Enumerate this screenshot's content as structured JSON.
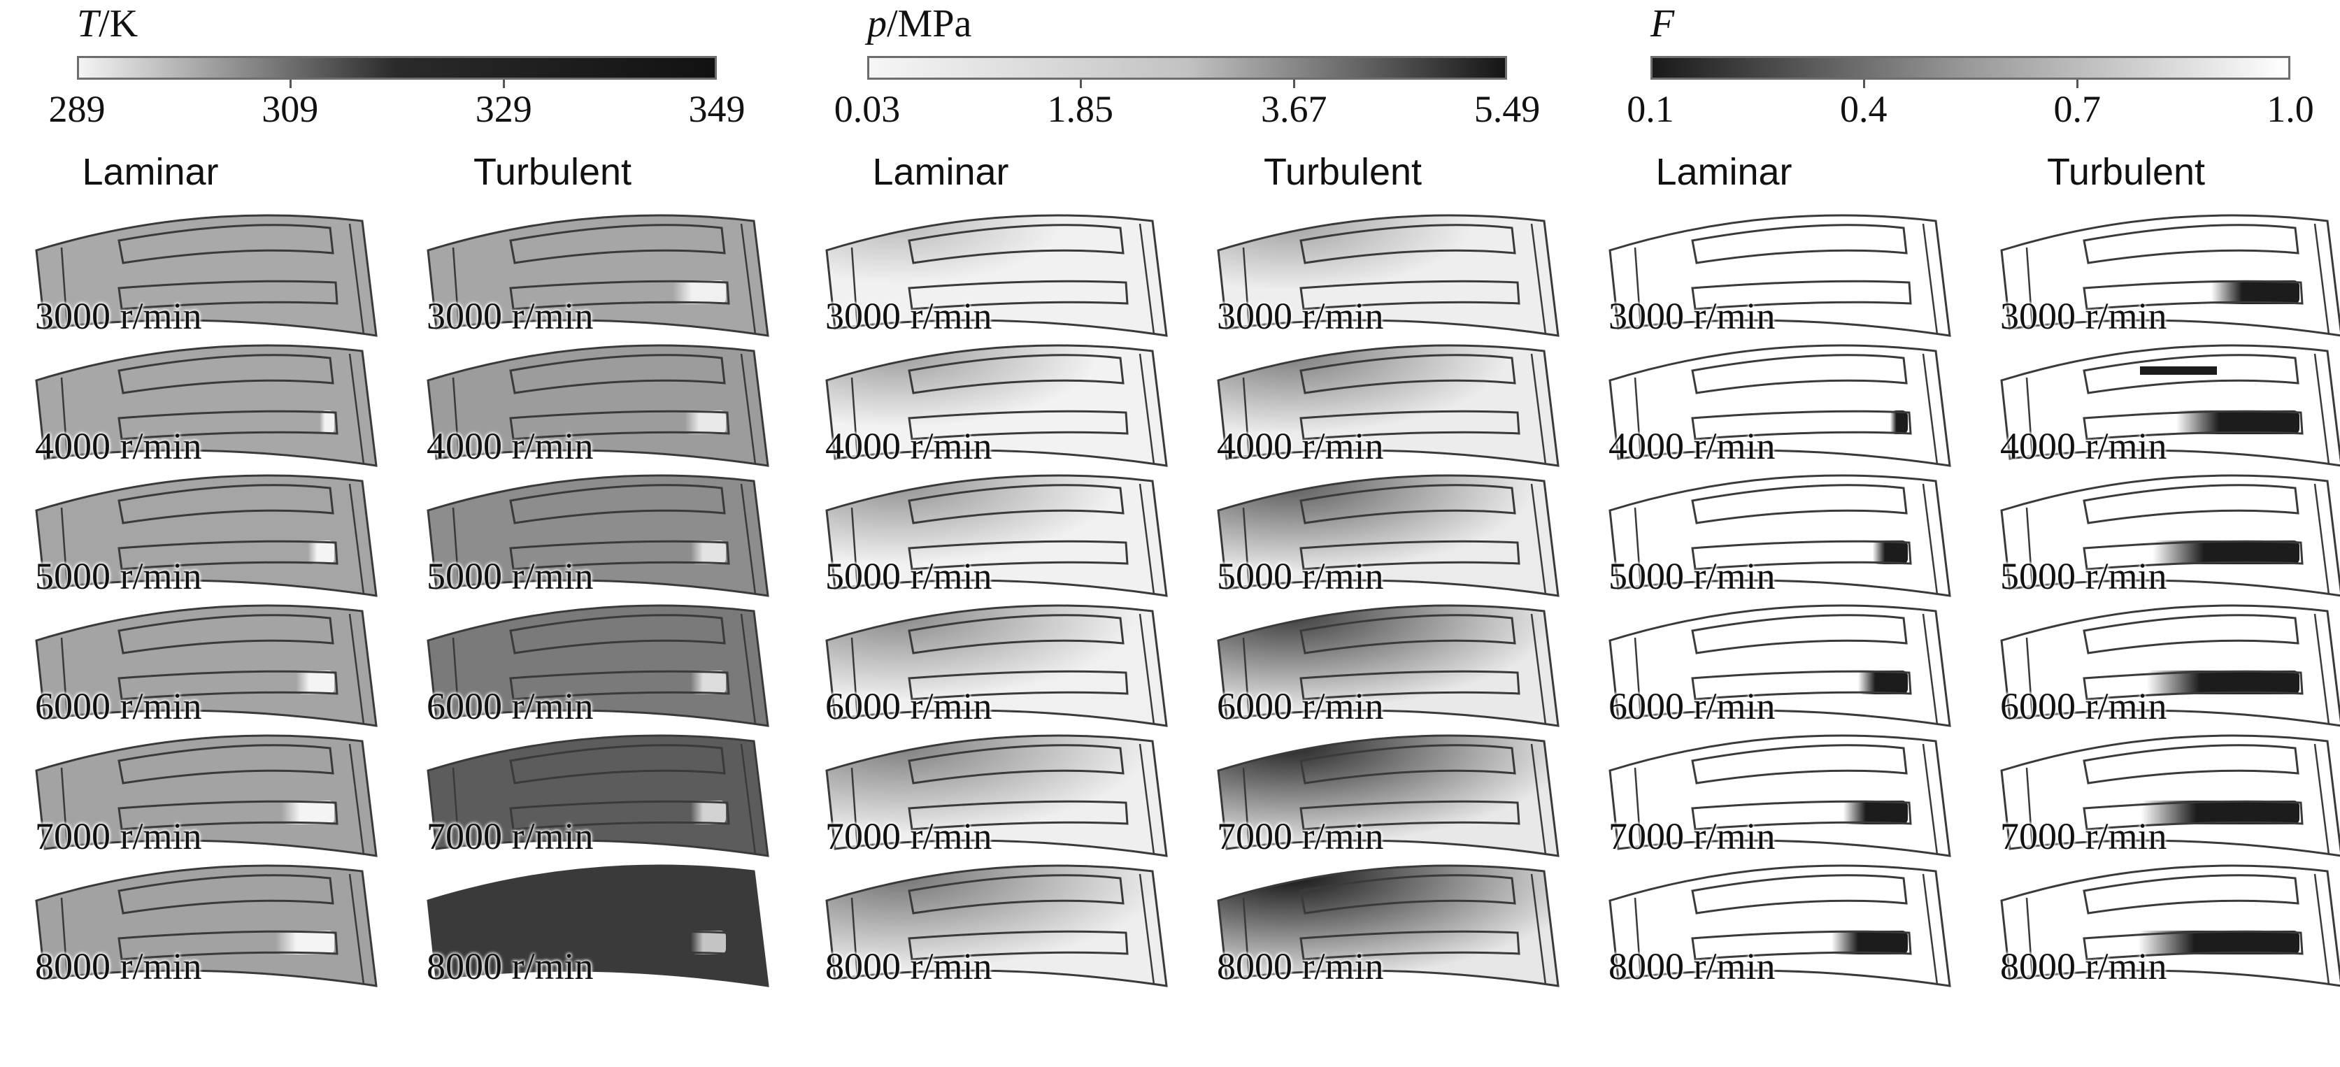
{
  "panels": [
    {
      "quantity_symbol": "T",
      "quantity_unit": "/K",
      "colorbar": {
        "gradient": [
          "#f4f4f4",
          "#2a2a2a",
          "#121212"
        ],
        "ticks": [
          "289",
          "309",
          "329",
          "349"
        ],
        "tick_fractions": [
          0,
          0.333,
          0.667,
          1
        ]
      },
      "columns": [
        "Laminar",
        "Turbulent"
      ],
      "rows": [
        {
          "speed": "3000 r/min",
          "cells": [
            {
              "body": "#a9a9a9",
              "blob": "#b5b5b5",
              "blob_w": 0
            },
            {
              "body": "#a6a6a6",
              "blob": "#f0f0f0",
              "blob_w": 0.18
            }
          ]
        },
        {
          "speed": "4000 r/min",
          "cells": [
            {
              "body": "#a7a7a7",
              "blob": "#f2f2f2",
              "blob_w": 0.05
            },
            {
              "body": "#9c9c9c",
              "blob": "#e9e9e9",
              "blob_w": 0.14
            }
          ]
        },
        {
          "speed": "5000 r/min",
          "cells": [
            {
              "body": "#a5a5a5",
              "blob": "#f4f4f4",
              "blob_w": 0.09
            },
            {
              "body": "#8d8d8d",
              "blob": "#e3e3e3",
              "blob_w": 0.12
            }
          ]
        },
        {
          "speed": "6000 r/min",
          "cells": [
            {
              "body": "#a4a4a4",
              "blob": "#f4f4f4",
              "blob_w": 0.13
            },
            {
              "body": "#7a7a7a",
              "blob": "#dcdcdc",
              "blob_w": 0.12
            }
          ]
        },
        {
          "speed": "7000 r/min",
          "cells": [
            {
              "body": "#a3a3a3",
              "blob": "#f4f4f4",
              "blob_w": 0.18
            },
            {
              "body": "#5c5c5c",
              "blob": "#d2d2d2",
              "blob_w": 0.12
            }
          ]
        },
        {
          "speed": "8000 r/min",
          "cells": [
            {
              "body": "#a2a2a2",
              "blob": "#f4f4f4",
              "blob_w": 0.2
            },
            {
              "body": "#3a3a3a",
              "blob": "#c4c4c4",
              "blob_w": 0.12
            }
          ]
        }
      ]
    },
    {
      "quantity_symbol": "p",
      "quantity_unit": "/MPa",
      "colorbar": {
        "gradient": [
          "#f6f6f6",
          "#c2c2c2",
          "#151515"
        ],
        "ticks": [
          "0.03",
          "1.85",
          "3.67",
          "5.49"
        ],
        "tick_fractions": [
          0,
          0.333,
          0.667,
          1
        ]
      },
      "columns": [
        "Laminar",
        "Turbulent"
      ],
      "rows": [
        {
          "speed": "3000 r/min",
          "cells": [
            {
              "body": "#f1f1f1",
              "corner": "#bdbdbd",
              "corner_strength": 0.2
            },
            {
              "body": "#eeeeee",
              "corner": "#a5a5a5",
              "corner_strength": 0.25
            }
          ]
        },
        {
          "speed": "4000 r/min",
          "cells": [
            {
              "body": "#f2f2f2",
              "corner": "#a0a0a0",
              "corner_strength": 0.3
            },
            {
              "body": "#ececec",
              "corner": "#808080",
              "corner_strength": 0.35
            }
          ]
        },
        {
          "speed": "5000 r/min",
          "cells": [
            {
              "body": "#f1f1f1",
              "corner": "#959595",
              "corner_strength": 0.35
            },
            {
              "body": "#ebebeb",
              "corner": "#5e5e5e",
              "corner_strength": 0.42
            }
          ]
        },
        {
          "speed": "6000 r/min",
          "cells": [
            {
              "body": "#f0f0f0",
              "corner": "#8a8a8a",
              "corner_strength": 0.4
            },
            {
              "body": "#e9e9e9",
              "corner": "#3f3f3f",
              "corner_strength": 0.48
            }
          ]
        },
        {
          "speed": "7000 r/min",
          "cells": [
            {
              "body": "#efefef",
              "corner": "#7f7f7f",
              "corner_strength": 0.44
            },
            {
              "body": "#e8e8e8",
              "corner": "#262626",
              "corner_strength": 0.52
            }
          ]
        },
        {
          "speed": "8000 r/min",
          "cells": [
            {
              "body": "#eeeeee",
              "corner": "#747474",
              "corner_strength": 0.48
            },
            {
              "body": "#e6e6e6",
              "corner": "#151515",
              "corner_strength": 0.56
            }
          ]
        }
      ]
    },
    {
      "quantity_symbol": "F",
      "quantity_unit": "",
      "colorbar": {
        "gradient": [
          "#1a1a1a",
          "#9a9a9a",
          "#ffffff"
        ],
        "ticks": [
          "0.1",
          "0.4",
          "0.7",
          "1.0"
        ],
        "tick_fractions": [
          0,
          0.333,
          0.667,
          1
        ]
      },
      "columns": [
        "Laminar",
        "Turbulent"
      ],
      "rows": [
        {
          "speed": "3000 r/min",
          "cells": [
            {
              "body": "#ffffff",
              "blob": "#1c1c1c",
              "blob_w": 0
            },
            {
              "body": "#ffffff",
              "blob": "#1c1c1c",
              "blob_w": 0.3
            }
          ]
        },
        {
          "speed": "4000 r/min",
          "cells": [
            {
              "body": "#ffffff",
              "blob": "#1c1c1c",
              "blob_w": 0.06
            },
            {
              "body": "#ffffff",
              "blob": "#1c1c1c",
              "blob_w": 0.42,
              "top_bar": true
            }
          ]
        },
        {
          "speed": "5000 r/min",
          "cells": [
            {
              "body": "#ffffff",
              "blob": "#1c1c1c",
              "blob_w": 0.12
            },
            {
              "body": "#ffffff",
              "blob": "#1c1c1c",
              "blob_w": 0.5
            }
          ]
        },
        {
          "speed": "6000 r/min",
          "cells": [
            {
              "body": "#ffffff",
              "blob": "#1c1c1c",
              "blob_w": 0.17
            },
            {
              "body": "#ffffff",
              "blob": "#1c1c1c",
              "blob_w": 0.52
            }
          ]
        },
        {
          "speed": "7000 r/min",
          "cells": [
            {
              "body": "#ffffff",
              "blob": "#1c1c1c",
              "blob_w": 0.22
            },
            {
              "body": "#ffffff",
              "blob": "#1c1c1c",
              "blob_w": 0.54
            }
          ]
        },
        {
          "speed": "8000 r/min",
          "cells": [
            {
              "body": "#ffffff",
              "blob": "#1c1c1c",
              "blob_w": 0.26
            },
            {
              "body": "#ffffff",
              "blob": "#1c1c1c",
              "blob_w": 0.55
            }
          ]
        }
      ]
    }
  ]
}
